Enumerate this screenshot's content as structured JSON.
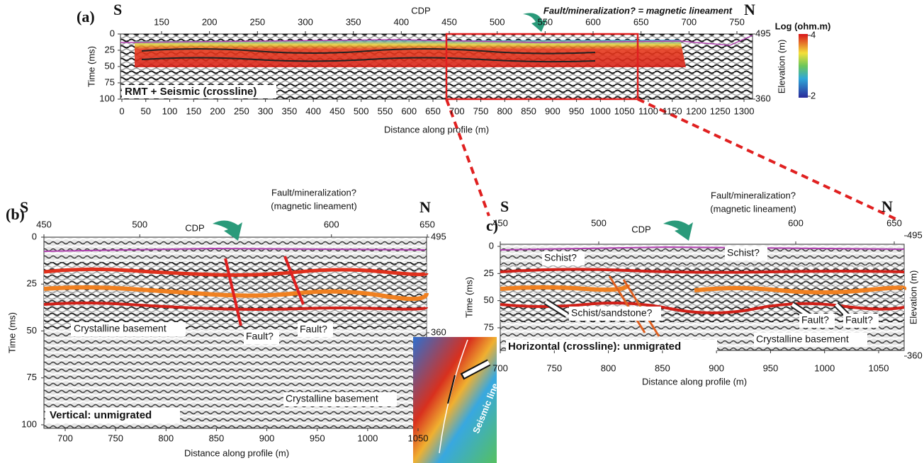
{
  "panel_a": {
    "label": "(a)",
    "left": "S",
    "right": "N",
    "cdp_label": "CDP",
    "cdp_ticks": [
      150,
      200,
      250,
      300,
      350,
      400,
      450,
      500,
      550,
      600,
      650,
      700,
      750
    ],
    "annotation": "Fault/mineralization? = magnetic lineament",
    "time_label": "Time (ms)",
    "time_ticks": [
      0,
      25,
      50,
      75,
      100
    ],
    "elevation_label": "Elevation (m)",
    "elevation_ticks": [
      495,
      360
    ],
    "distance_ticks": [
      0,
      50,
      100,
      150,
      200,
      250,
      300,
      350,
      400,
      450,
      500,
      550,
      600,
      650,
      700,
      750,
      800,
      850,
      900,
      950,
      1000,
      1050,
      1100,
      1150,
      1200,
      1250,
      1300
    ],
    "distance_label": "Distance along profile (m)",
    "caption": "RMT + Seismic (crossline)",
    "colorbar_title": "Log (ohm.m)",
    "colorbar_ticks": [
      4,
      2
    ]
  },
  "panel_b": {
    "label": "(b)",
    "left": "S",
    "right": "N",
    "cdp_label": "CDP",
    "cdp_ticks": [
      450,
      500,
      600,
      650
    ],
    "annotation": [
      "Fault/mineralization?",
      "(magnetic lineament)"
    ],
    "time_label": "Time (ms)",
    "time_ticks": [
      0,
      25,
      50,
      75,
      100
    ],
    "elevation_ticks": [
      495,
      360
    ],
    "distance_ticks": [
      700,
      750,
      800,
      850,
      900,
      950,
      1000,
      1050
    ],
    "distance_label": "Distance along profile (m)",
    "caption": "Vertical: unmigrated",
    "notes": [
      "Crystalline basement",
      "Fault?",
      "Fault?",
      "Crystalline basement"
    ]
  },
  "panel_c": {
    "label": "c)",
    "left": "S",
    "right": "N",
    "cdp_label": "CDP",
    "cdp_ticks": [
      450,
      500,
      600,
      650
    ],
    "annotation": [
      "Fault/mineralization?",
      "(magnetic lineament)"
    ],
    "time_label": "Time (ms)",
    "time_ticks": [
      0,
      25,
      50,
      75
    ],
    "elevation_label": "Elevation (m)",
    "elevation_ticks": [
      495,
      360
    ],
    "distance_ticks": [
      700,
      750,
      800,
      850,
      900,
      950,
      1000,
      1050
    ],
    "distance_label": "Distance along profile (m)",
    "caption": "Horizontal (crossline): unmigrated",
    "notes": [
      "Schist?",
      "Schist?",
      "Schist/sandstone?",
      "Fault?",
      "Fault?",
      "Crystalline basement"
    ]
  },
  "inset": {
    "label": "Seismic line"
  }
}
